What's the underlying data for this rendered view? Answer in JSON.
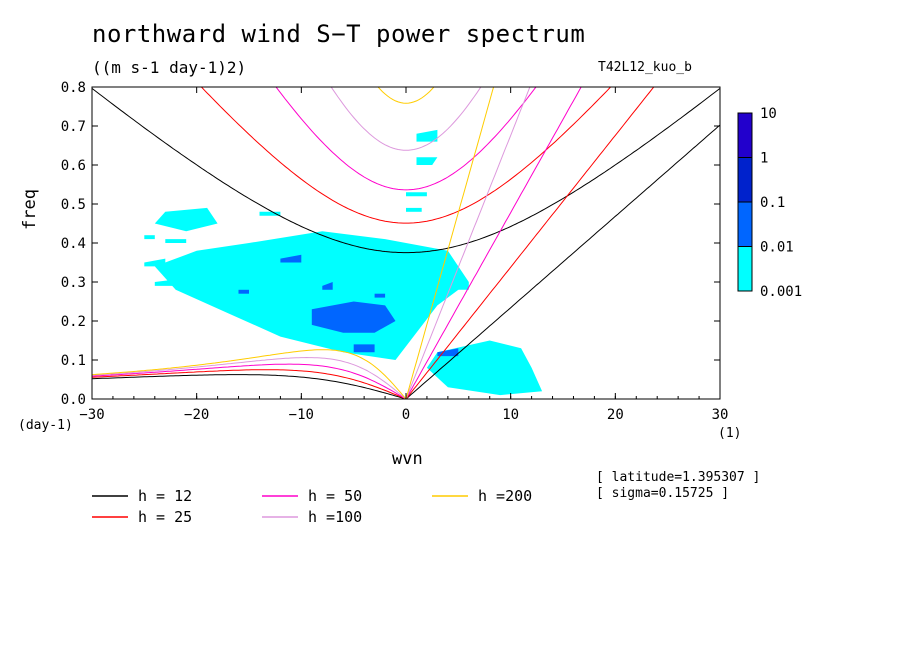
{
  "title": "northward wind S−T power spectrum",
  "units": "((m s-1 day-1)2)",
  "run_name": "T42L12_kuo_b",
  "latitude_note": "[ latitude=1.395307 ]",
  "sigma_note": "[ sigma=0.15725 ]",
  "x_unit": "(day-1)",
  "x_unit2": "(1)",
  "chart_data": {
    "type": "heatmap",
    "xlabel": "wvn",
    "ylabel": "freq",
    "xlim": [
      -30,
      30
    ],
    "ylim": [
      0,
      0.8
    ],
    "xticks": [
      -30,
      -20,
      -10,
      0,
      10,
      20,
      30
    ],
    "yticks": [
      0.0,
      0.1,
      0.2,
      0.3,
      0.4,
      0.5,
      0.6,
      0.7,
      0.8
    ],
    "xtick_labels": [
      "−30",
      "−20",
      "−10",
      "0",
      "10",
      "20",
      "30"
    ],
    "ytick_labels": [
      "0.0",
      "0.1",
      "0.2",
      "0.3",
      "0.4",
      "0.5",
      "0.6",
      "0.7",
      "0.8"
    ],
    "colorbar": {
      "levels": [
        "0.001",
        "0.01",
        "0.1",
        "1",
        "10"
      ],
      "colors": [
        "#00ffff",
        "#0066ff",
        "#0022cc",
        "#2200cc"
      ]
    },
    "shaded_regions": [
      {
        "level": "0.001-0.01",
        "polygons": [
          [
            [
              -15,
              0.4
            ],
            [
              -8,
              0.43
            ],
            [
              -2,
              0.41
            ],
            [
              4,
              0.38
            ],
            [
              6,
              0.3
            ],
            [
              3,
              0.24
            ],
            [
              -1,
              0.1
            ],
            [
              -6,
              0.12
            ],
            [
              -12,
              0.16
            ],
            [
              -17,
              0.22
            ],
            [
              -22,
              0.28
            ],
            [
              -24,
              0.34
            ],
            [
              -20,
              0.38
            ]
          ],
          [
            [
              -23,
              0.48
            ],
            [
              -19,
              0.49
            ],
            [
              -18,
              0.45
            ],
            [
              -21,
              0.43
            ],
            [
              -24,
              0.45
            ]
          ],
          [
            [
              3,
              0.12
            ],
            [
              8,
              0.15
            ],
            [
              11,
              0.13
            ],
            [
              12,
              0.08
            ],
            [
              13,
              0.02
            ],
            [
              9,
              0.01
            ],
            [
              4,
              0.03
            ],
            [
              2,
              0.08
            ]
          ],
          [
            [
              -14,
              0.22
            ],
            [
              -10,
              0.25
            ],
            [
              -6,
              0.24
            ],
            [
              -5,
              0.19
            ],
            [
              -9,
              0.17
            ],
            [
              -13,
              0.18
            ]
          ],
          [
            [
              -6,
              0.2
            ],
            [
              -2,
              0.22
            ],
            [
              0,
              0.17
            ],
            [
              -2,
              0.13
            ],
            [
              -5,
              0.15
            ]
          ],
          [
            [
              1,
              0.68
            ],
            [
              3,
              0.69
            ],
            [
              3,
              0.66
            ],
            [
              1,
              0.66
            ]
          ],
          [
            [
              1,
              0.62
            ],
            [
              3,
              0.62
            ],
            [
              2.5,
              0.6
            ],
            [
              1,
              0.6
            ]
          ],
          [
            [
              0,
              0.53
            ],
            [
              2,
              0.53
            ],
            [
              2,
              0.52
            ],
            [
              0,
              0.52
            ]
          ],
          [
            [
              0,
              0.49
            ],
            [
              1.5,
              0.49
            ],
            [
              1.5,
              0.48
            ],
            [
              0,
              0.48
            ]
          ],
          [
            [
              -25,
              0.35
            ],
            [
              -23,
              0.36
            ],
            [
              -23,
              0.34
            ],
            [
              -25,
              0.34
            ]
          ],
          [
            [
              -23,
              0.41
            ],
            [
              -21,
              0.41
            ],
            [
              -21,
              0.4
            ],
            [
              -23,
              0.4
            ]
          ],
          [
            [
              -24,
              0.3
            ],
            [
              -21,
              0.31
            ],
            [
              -21,
              0.29
            ],
            [
              -24,
              0.29
            ]
          ],
          [
            [
              -15,
              0.33
            ],
            [
              -12,
              0.34
            ],
            [
              -12,
              0.32
            ],
            [
              -15,
              0.32
            ]
          ],
          [
            [
              -25,
              0.42
            ],
            [
              -24,
              0.42
            ],
            [
              -24,
              0.41
            ],
            [
              -25,
              0.41
            ]
          ],
          [
            [
              -14,
              0.48
            ],
            [
              -12,
              0.48
            ],
            [
              -12,
              0.47
            ],
            [
              -14,
              0.47
            ]
          ],
          [
            [
              -8,
              0.3
            ],
            [
              -6,
              0.31
            ],
            [
              -6,
              0.29
            ],
            [
              -8,
              0.29
            ]
          ],
          [
            [
              4,
              0.29
            ],
            [
              6,
              0.3
            ],
            [
              6,
              0.28
            ],
            [
              4,
              0.28
            ]
          ]
        ]
      },
      {
        "level": "0.01-0.1",
        "polygons": [
          [
            [
              -9,
              0.23
            ],
            [
              -5,
              0.25
            ],
            [
              -2,
              0.24
            ],
            [
              -1,
              0.2
            ],
            [
              -3,
              0.17
            ],
            [
              -6,
              0.17
            ],
            [
              -9,
              0.19
            ]
          ],
          [
            [
              -12,
              0.36
            ],
            [
              -10,
              0.37
            ],
            [
              -10,
              0.35
            ],
            [
              -12,
              0.35
            ]
          ],
          [
            [
              -5,
              0.14
            ],
            [
              -3,
              0.14
            ],
            [
              -3,
              0.12
            ],
            [
              -5,
              0.12
            ]
          ],
          [
            [
              3,
              0.12
            ],
            [
              5,
              0.13
            ],
            [
              5,
              0.11
            ],
            [
              3,
              0.11
            ]
          ],
          [
            [
              -8,
              0.29
            ],
            [
              -7,
              0.3
            ],
            [
              -7,
              0.28
            ],
            [
              -8,
              0.28
            ]
          ],
          [
            [
              -3,
              0.27
            ],
            [
              -2,
              0.27
            ],
            [
              -2,
              0.26
            ],
            [
              -3,
              0.26
            ]
          ],
          [
            [
              -16,
              0.28
            ],
            [
              -15,
              0.28
            ],
            [
              -15,
              0.27
            ],
            [
              -16,
              0.27
            ]
          ]
        ]
      }
    ],
    "series": [
      {
        "name": "h = 12",
        "color": "#000000",
        "n_values": [
          -1,
          0,
          1
        ],
        "x": [
          -30,
          -25,
          -20,
          -15,
          -10,
          -5,
          0,
          5,
          10,
          15,
          20,
          25,
          30
        ],
        "y": [
          0.762,
          0.65,
          0.553,
          0.473,
          0.415,
          0.382,
          0.372,
          0.388,
          0.425,
          0.483,
          0.563,
          0.66,
          0.771
        ]
      },
      {
        "name": "h = 25",
        "color": "#ff0000",
        "n_values": [
          -1,
          0,
          1
        ],
        "x": [
          -15,
          -10,
          -5,
          0,
          5,
          10,
          15
        ],
        "y": [
          0.732,
          0.578,
          0.478,
          0.446,
          0.48,
          0.583,
          0.738
        ]
      },
      {
        "name": "h = 50",
        "color": "#ff00cc",
        "n_values": [
          -1,
          0,
          1
        ],
        "x": [
          -10,
          -5,
          0,
          5,
          10
        ],
        "y": [
          0.79,
          0.578,
          0.53,
          0.58,
          0.79
        ]
      },
      {
        "name": "h =100",
        "color": "#dd99dd",
        "n_values": [
          -1,
          0,
          1
        ],
        "x": [
          -5,
          0,
          5
        ],
        "y": [
          0.69,
          0.63,
          0.69
        ]
      },
      {
        "name": "h =200",
        "color": "#ffcc00",
        "n_values": [
          -1,
          0,
          1
        ],
        "x": [
          -4,
          0,
          2
        ],
        "y": [
          0.79,
          0.75,
          0.8
        ]
      }
    ]
  }
}
